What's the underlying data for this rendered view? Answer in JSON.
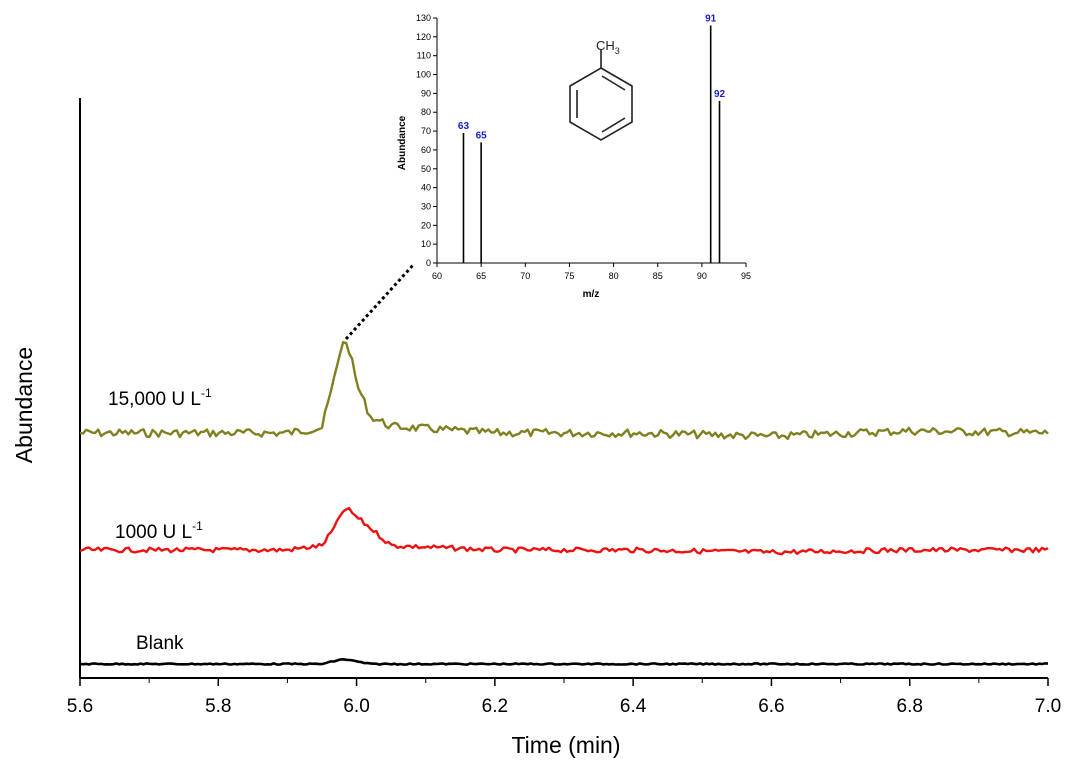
{
  "chart_data": [
    {
      "type": "line",
      "title": "",
      "xlabel": "Time (min)",
      "ylabel": "Abundance",
      "xlim": [
        5.6,
        7.0
      ],
      "xticks": [
        "5.6",
        "5.8",
        "6.0",
        "6.2",
        "6.4",
        "6.6",
        "6.8",
        "7.0"
      ],
      "grid": false,
      "legend": "none",
      "series": [
        {
          "name": "15,000 U L",
          "label_sup": "-1",
          "color": "#808020",
          "peak_time": 5.98,
          "x": [
            5.6,
            5.9,
            5.95,
            5.97,
            5.98,
            5.99,
            6.0,
            6.02,
            6.05,
            6.2,
            6.4,
            6.6,
            6.8,
            7.0
          ],
          "y": [
            0.0,
            0.0,
            0.05,
            0.55,
            0.85,
            0.75,
            0.45,
            0.15,
            0.06,
            0.0,
            0.0,
            -0.03,
            0.02,
            0.0
          ]
        },
        {
          "name": "1000 U L",
          "label_sup": "-1",
          "color": "#ee1111",
          "peak_time": 5.985,
          "x": [
            5.6,
            5.9,
            5.95,
            5.97,
            5.98,
            5.99,
            6.0,
            6.02,
            6.05,
            6.2,
            6.4,
            6.6,
            6.8,
            7.0
          ],
          "y": [
            0.0,
            0.0,
            0.04,
            0.22,
            0.36,
            0.36,
            0.3,
            0.2,
            0.04,
            0.0,
            0.0,
            -0.02,
            0.0,
            0.0
          ]
        },
        {
          "name": "Blank",
          "label_sup": "",
          "color": "#000000",
          "peak_time": 5.98,
          "x": [
            5.6,
            5.95,
            5.97,
            5.98,
            5.99,
            6.0,
            6.02,
            7.0
          ],
          "y": [
            0.0,
            0.0,
            0.04,
            0.06,
            0.05,
            0.03,
            0.0,
            0.0
          ]
        }
      ]
    },
    {
      "type": "bar",
      "title": "",
      "xlabel": "m/z",
      "ylabel": "Abundance",
      "xlim": [
        60,
        95
      ],
      "ylim": [
        0,
        130
      ],
      "xticks": [
        "60",
        "65",
        "70",
        "75",
        "80",
        "85",
        "90",
        "95"
      ],
      "yticks": [
        "0",
        "10",
        "20",
        "30",
        "40",
        "50",
        "60",
        "70",
        "80",
        "90",
        "100",
        "110",
        "120",
        "130"
      ],
      "peak_label_color": "#1a1acc",
      "x": [
        63,
        65,
        91,
        92
      ],
      "values": [
        69,
        64,
        126,
        86
      ],
      "labels": [
        "63",
        "65",
        "91",
        "92"
      ],
      "structure_label": "CH",
      "structure_sub": "3"
    }
  ]
}
